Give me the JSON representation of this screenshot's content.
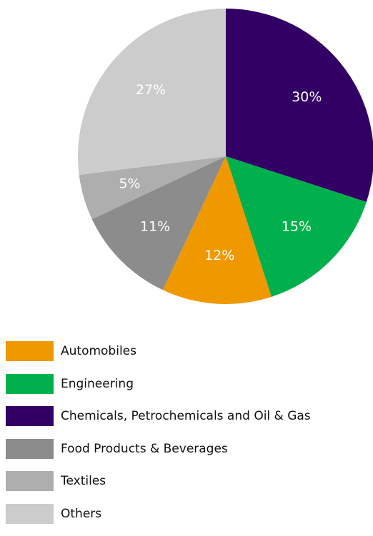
{
  "chart_data": {
    "type": "pie",
    "title": "",
    "start": "top",
    "direction": "clockwise",
    "slices": [
      {
        "label": "Chemicals, Petrochemicals and Oil & Gas",
        "value": 30,
        "display": "30%",
        "color": "#320064"
      },
      {
        "label": "Engineering",
        "value": 15,
        "display": "15%",
        "color": "#00b04c"
      },
      {
        "label": "Automobiles",
        "value": 12,
        "display": "12%",
        "color": "#f09800"
      },
      {
        "label": "Food Products & Beverages",
        "value": 11,
        "display": "11%",
        "color": "#8c8c8c"
      },
      {
        "label": "Textiles",
        "value": 5,
        "display": "5%",
        "color": "#aeaeae"
      },
      {
        "label": "Others",
        "value": 27,
        "display": "27%",
        "color": "#cccccc"
      }
    ],
    "legend": [
      {
        "label": "Automobiles",
        "color": "#f09800"
      },
      {
        "label": "Engineering",
        "color": "#00b04c"
      },
      {
        "label": "Chemicals, Petrochemicals and Oil & Gas",
        "color": "#320064"
      },
      {
        "label": "Food Products & Beverages",
        "color": "#8c8c8c"
      },
      {
        "label": "Textiles",
        "color": "#aeaeae"
      },
      {
        "label": "Others",
        "color": "#cccccc"
      }
    ],
    "legend_position": "bottom-left"
  }
}
